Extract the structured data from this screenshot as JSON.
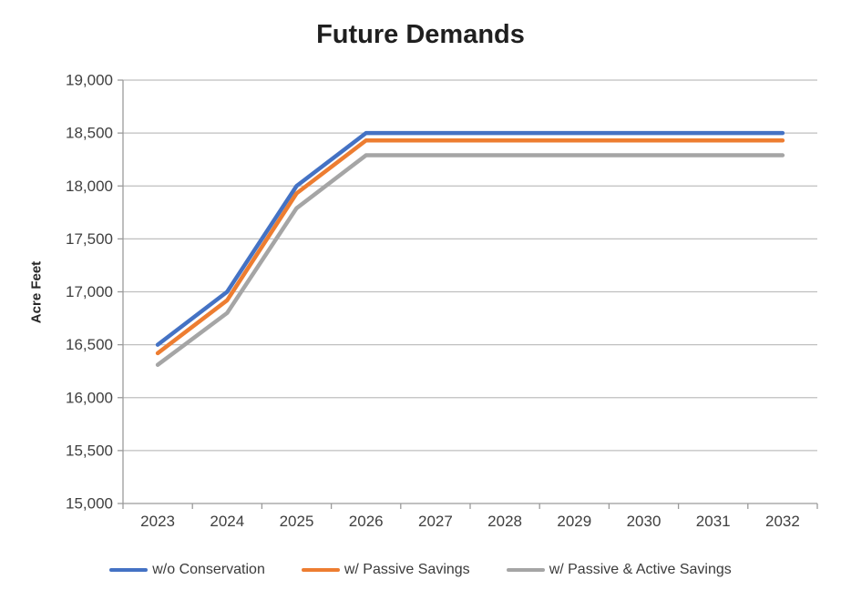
{
  "chart_data": {
    "type": "line",
    "title": "Future Demands",
    "ylabel": "Acre Feet",
    "xlabel": "",
    "categories": [
      "2023",
      "2024",
      "2025",
      "2026",
      "2027",
      "2028",
      "2029",
      "2030",
      "2031",
      "2032"
    ],
    "ylim": [
      15000,
      19000
    ],
    "ytick_step": 500,
    "y_tick_labels": [
      "15,000",
      "15,500",
      "16,000",
      "16,500",
      "17,000",
      "17,500",
      "18,000",
      "18,500",
      "19,000"
    ],
    "grid": "horizontal",
    "legend_position": "bottom",
    "axis_color": "#9a9a9a",
    "gridline_color": "#bfbfbf",
    "tick_label_color": "#3f3f3f",
    "series": [
      {
        "name": "w/o Conservation",
        "color": "#4472C4",
        "values": [
          16500,
          17000,
          18000,
          18500,
          18500,
          18500,
          18500,
          18500,
          18500,
          18500
        ]
      },
      {
        "name": "w/ Passive Savings",
        "color": "#ED7D31",
        "values": [
          16420,
          16920,
          17930,
          18430,
          18430,
          18430,
          18430,
          18430,
          18430,
          18430
        ]
      },
      {
        "name": "w/ Passive & Active Savings",
        "color": "#A5A5A5",
        "values": [
          16310,
          16800,
          17790,
          18290,
          18290,
          18290,
          18290,
          18290,
          18290,
          18290
        ]
      }
    ]
  }
}
